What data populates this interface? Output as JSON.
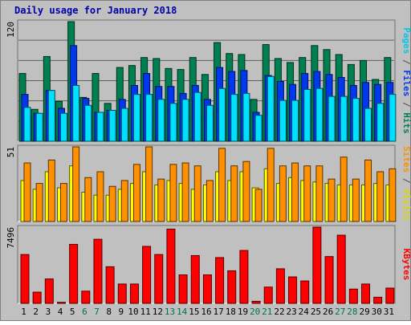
{
  "chart_data": {
    "type": "bar",
    "title": "Daily usage for January 2018",
    "colors": {
      "background": "#c0c0c0",
      "frame": "#e8e8e8",
      "title": "#0000a8",
      "grid": "#606060",
      "hits": "#008050",
      "files": "#0038f0",
      "pages": "#00e0ff",
      "visits": "#ffff00",
      "sites": "#ff9000",
      "kbytes": "#ff0000",
      "weekend_day": "#007050",
      "weekday": "#000000"
    },
    "categories": [
      "1",
      "2",
      "3",
      "4",
      "5",
      "6",
      "7",
      "8",
      "9",
      "10",
      "11",
      "12",
      "13",
      "14",
      "15",
      "16",
      "17",
      "18",
      "19",
      "20",
      "21",
      "22",
      "23",
      "24",
      "25",
      "26",
      "27",
      "28",
      "29",
      "30",
      "31"
    ],
    "weekend_days": [
      "6",
      "7",
      "13",
      "14",
      "20",
      "21",
      "27",
      "28"
    ],
    "panels": [
      {
        "ylabel_max": "120",
        "ymax": 120,
        "side_labels": [
          {
            "text": "Pages",
            "color": "#00c8e8"
          },
          {
            "text": " / ",
            "color": "#505050"
          },
          {
            "text": "Files",
            "color": "#0038f0"
          },
          {
            "text": " / ",
            "color": "#505050"
          },
          {
            "text": "Hits",
            "color": "#008050"
          }
        ],
        "series": [
          {
            "name": "Hits",
            "color": "#008050",
            "values": [
              68,
              32,
              85,
              40,
              120,
              44,
              68,
              38,
              74,
              76,
              84,
              83,
              73,
              72,
              84,
              67,
              99,
              88,
              87,
              42,
              97,
              83,
              79,
              84,
              96,
              92,
              87,
              77,
              81,
              62,
              84
            ]
          },
          {
            "name": "Files",
            "color": "#0038f0",
            "values": [
              47,
              28,
              51,
              33,
              96,
              43,
              29,
              31,
              42,
              56,
              68,
              55,
              55,
              48,
              56,
              42,
              74,
              70,
              71,
              29,
              66,
              60,
              57,
              68,
              70,
              67,
              64,
              56,
              59,
              57,
              59
            ]
          },
          {
            "name": "Pages",
            "color": "#00e0ff",
            "values": [
              34,
              28,
              51,
              28,
              56,
              36,
              29,
              31,
              33,
              47,
              47,
              42,
              38,
              42,
              49,
              36,
              53,
              47,
              48,
              26,
              65,
              41,
              41,
              52,
              53,
              45,
              45,
              43,
              33,
              38,
              47
            ]
          }
        ]
      },
      {
        "ylabel_max": "51",
        "ymax": 51,
        "side_labels": [
          {
            "text": "Sites",
            "color": "#ff9000"
          },
          {
            "text": " / ",
            "color": "#505050"
          },
          {
            "text": "Visits",
            "color": "#d8d800"
          }
        ],
        "series": [
          {
            "name": "Visits",
            "color": "#ffff00",
            "values": [
              28,
              22,
              34,
              23,
              38,
              20,
              18,
              18,
              22,
              26,
              34,
              25,
              28,
              26,
              22,
              25,
              34,
              28,
              34,
              23,
              36,
              26,
              30,
              28,
              27,
              26,
              25,
              25,
              25,
              26,
              25
            ]
          },
          {
            "name": "Sites",
            "color": "#ff9000",
            "values": [
              40,
              26,
              42,
              26,
              52,
              30,
              34,
              24,
              28,
              39,
              57,
              29,
              39,
              40,
              38,
              28,
              50,
              38,
              41,
              22,
              50,
              38,
              40,
              38,
              38,
              29,
              44,
              29,
              42,
              34,
              36
            ]
          }
        ]
      },
      {
        "ylabel_max": "7496",
        "ymax": 7496,
        "side_labels": [
          {
            "text": "KBytes",
            "color": "#ff0000"
          }
        ],
        "series": [
          {
            "name": "KBytes",
            "color": "#ff0000",
            "values": [
              4800,
              1100,
              2400,
              100,
              5800,
              1200,
              6300,
              3600,
              1900,
              1900,
              5600,
              4800,
              7300,
              2800,
              4700,
              2800,
              4500,
              3200,
              5200,
              200,
              1600,
              3400,
              2600,
              2200,
              7700,
              4600,
              6700,
              1400,
              1900,
              600,
              1500
            ]
          }
        ]
      }
    ]
  }
}
